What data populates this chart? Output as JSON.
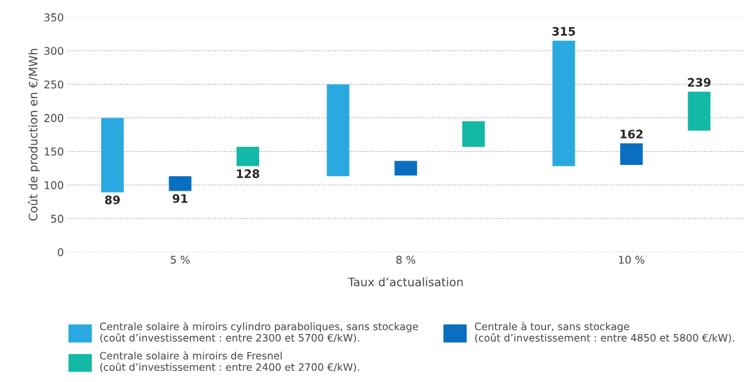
{
  "chart_data": {
    "type": "bar",
    "xlabel": "Taux d’actualisation",
    "ylabel": "Coût de production en €/MWh",
    "categories": [
      "5 %",
      "8 %",
      "10 %"
    ],
    "annotations": [
      "89",
      "91",
      "128"
    ],
    "series": [
      {
        "name": "Centrale solaire à miroirs cylindro paraboliques, sans stockage\n(coût d’investissement : entre 2300 et 5700 €/kW).",
        "color": "#29a9e0",
        "base": [
          89,
          113,
          128
        ],
        "values": [
          111,
          137,
          187
        ],
        "value_labels": [
          null,
          null,
          "315"
        ]
      },
      {
        "name": "Centrale à tour, sans stockage\n(coût d’investissement : entre 4850 et 5800 €/kW).",
        "color": "#0a6fc0",
        "base": [
          91,
          114,
          130
        ],
        "values": [
          22,
          22,
          32
        ],
        "value_labels": [
          null,
          null,
          "162"
        ]
      },
      {
        "name": "Centrale solaire à miroirs de Fresnel\n(coût d’investissement : entre 2400 et 2700 €/kW).",
        "color": "#14b8a6",
        "base": [
          128,
          157,
          181
        ],
        "values": [
          29,
          38,
          58
        ],
        "value_labels": [
          null,
          null,
          "239"
        ]
      }
    ],
    "ylim": [
      0,
      350
    ],
    "yticks": [
      0,
      50,
      100,
      150,
      200,
      250,
      300,
      350
    ],
    "grid": "y",
    "legend": "bottom"
  }
}
